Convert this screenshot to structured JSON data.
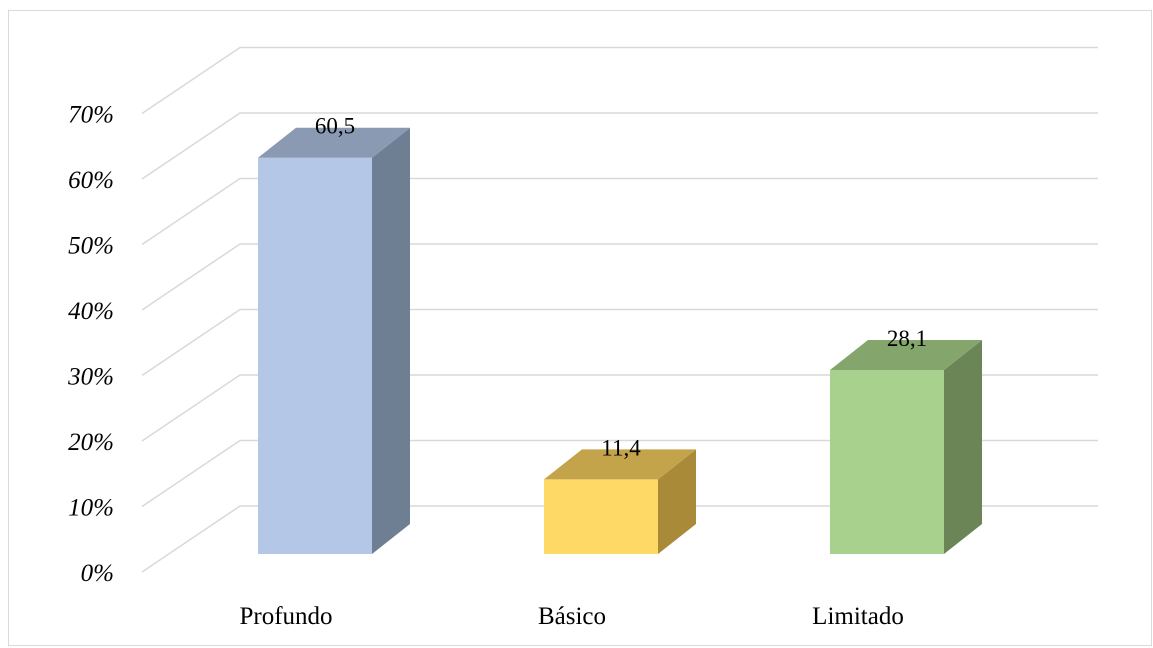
{
  "chart_data": {
    "type": "bar",
    "style": "3d-column",
    "categories": [
      "Profundo",
      "Básico",
      "Limitado"
    ],
    "values": [
      60.5,
      11.4,
      28.1
    ],
    "data_labels": [
      "60,5",
      "11,4",
      "28,1"
    ],
    "ylim": [
      0,
      70
    ],
    "yticks": [
      0,
      10,
      20,
      30,
      40,
      50,
      60,
      70
    ],
    "ytick_labels": [
      "0%",
      "10%",
      "20%",
      "30%",
      "40%",
      "50%",
      "60%",
      "70%"
    ],
    "grid": true,
    "legend": "none",
    "colors": {
      "front": [
        "#b4c7e7",
        "#ffd966",
        "#a9d18e"
      ],
      "side": [
        "#6f7f93",
        "#a88a38",
        "#6b8557"
      ],
      "top": [
        "#8b9ab3",
        "#c4a44a",
        "#84a56b"
      ],
      "gridline": "#d9d9d9",
      "frame": "#d9d9d9"
    }
  }
}
